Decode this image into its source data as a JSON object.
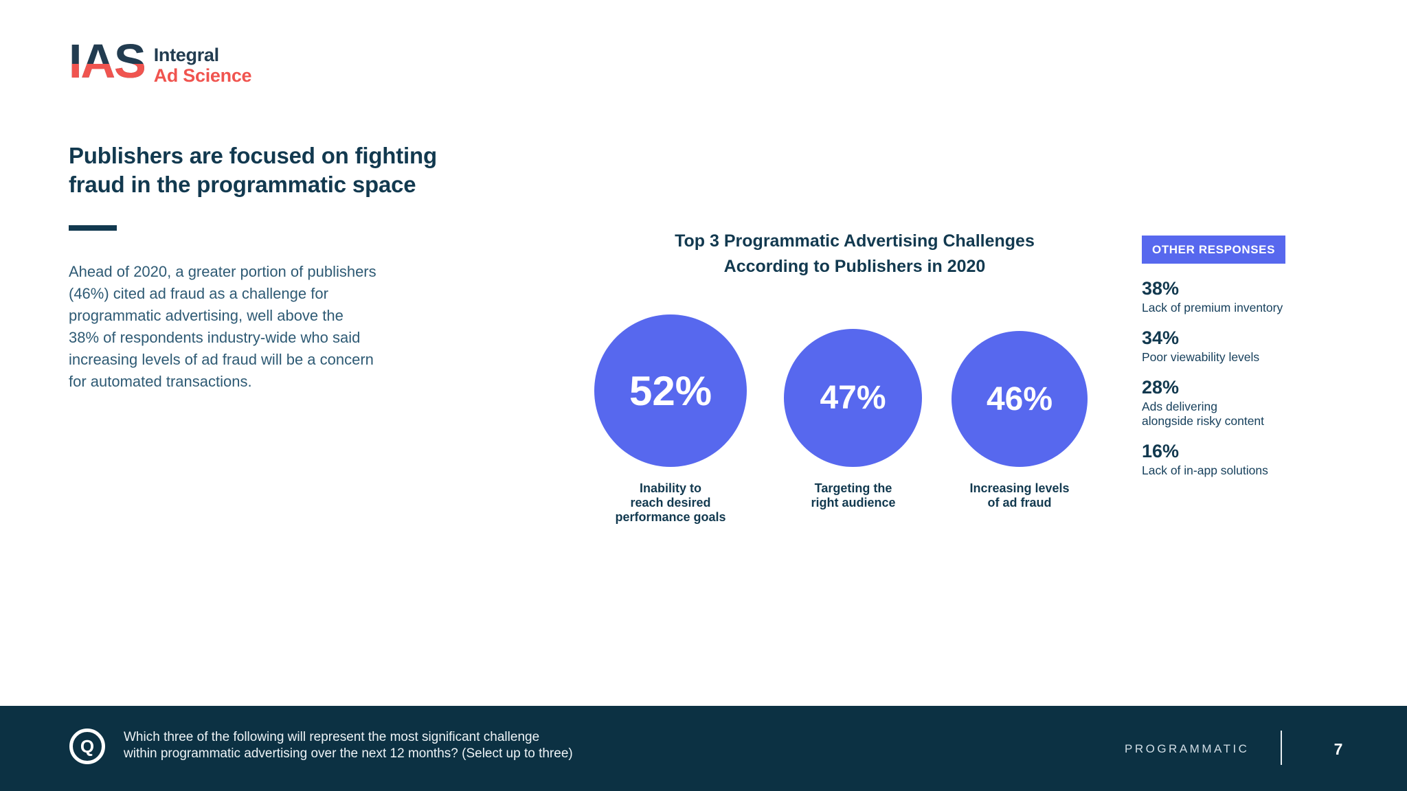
{
  "colors": {
    "navy_heading": "#12394f",
    "body_text": "#2e5a74",
    "accent_blue": "#5768ee",
    "footer_bg": "#0c3143",
    "logo_navy": "#223c50",
    "logo_coral": "#f0544f",
    "background": "#ffffff"
  },
  "logo": {
    "acronym": "IAS",
    "name_line1": "Integral",
    "name_line2": "Ad Science"
  },
  "intro": {
    "heading": "Publishers are focused on fighting\nfraud in the programmatic space",
    "paragraph": "Ahead of 2020, a greater portion of publishers\n(46%) cited ad fraud as a challenge for\nprogrammatic advertising, well above the\n38% of respondents industry-wide who said\nincreasing levels of ad fraud will be a concern\nfor automated transactions."
  },
  "chart_data": {
    "type": "bar",
    "variant": "proportional-bubbles",
    "title": "Top 3 Programmatic Advertising Challenges\nAccording to Publishers in 2020",
    "categories": [
      "Inability to reach desired performance goals",
      "Targeting the right audience",
      "Increasing levels of ad fraud"
    ],
    "values": [
      52,
      47,
      46
    ],
    "unit": "%",
    "legend_position": "none",
    "grid": false,
    "bubbles": [
      {
        "value_label": "52%",
        "label": "Inability to\nreach desired\nperformance goals"
      },
      {
        "value_label": "47%",
        "label": "Targeting the\nright audience"
      },
      {
        "value_label": "46%",
        "label": "Increasing levels\nof ad fraud"
      }
    ],
    "other_responses": {
      "header": "OTHER RESPONSES",
      "items": [
        {
          "value": "38%",
          "label": "Lack of premium inventory"
        },
        {
          "value": "34%",
          "label": "Poor viewability levels"
        },
        {
          "value": "28%",
          "label": "Ads delivering\nalongside risky content"
        },
        {
          "value": "16%",
          "label": "Lack of in-app solutions"
        }
      ]
    }
  },
  "footer": {
    "q_icon_letter": "Q",
    "question": "Which three of the following will represent the most significant challenge\nwithin programmatic advertising over the next 12 months? (Select up to three)",
    "section": "PROGRAMMATIC",
    "page_number": "7"
  }
}
